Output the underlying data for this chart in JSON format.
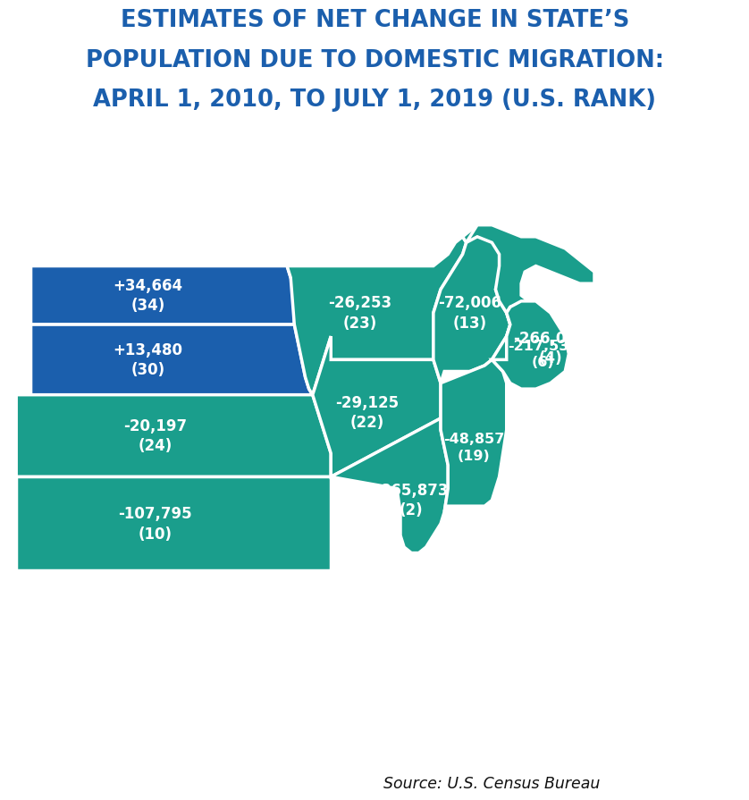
{
  "title_line1": "ESTIMATES OF NET CHANGE IN STATE’S",
  "title_line2": "POPULATION DUE TO DOMESTIC MIGRATION:",
  "title_line3": "APRIL 1, 2010, TO JULY 1, 2019 (U.S. RANK)",
  "title_color": "#1b5fad",
  "source_text": "Source: U.S. Census Bureau",
  "bg_color": "#ffffff",
  "teal_color": "#1a9e8c",
  "blue_color": "#1b5fad",
  "border_color": "#ffffff",
  "border_lw": 2.5,
  "label_fontsize": 12.0,
  "title_fontsize": 18.5,
  "source_fontsize": 12.5,
  "labels": {
    "north_dakota": [
      "+34,664",
      "(34)"
    ],
    "south_dakota": [
      "+13,480",
      "(30)"
    ],
    "nebraska": [
      "-20,197",
      "(24)"
    ],
    "kansas": [
      "-107,795",
      "(10)"
    ],
    "minnesota": [
      "-26,253",
      "(23)"
    ],
    "iowa": [
      "-29,125",
      "(22)"
    ],
    "wisconsin": [
      "-72,006",
      "(13)"
    ],
    "michigan": [
      "-266,084",
      "(4)"
    ],
    "illinois": [
      "-865,873",
      "(2)"
    ],
    "indiana": [
      "-48,857",
      "(19)"
    ],
    "ohio": [
      "-217,531",
      "(6)"
    ]
  }
}
